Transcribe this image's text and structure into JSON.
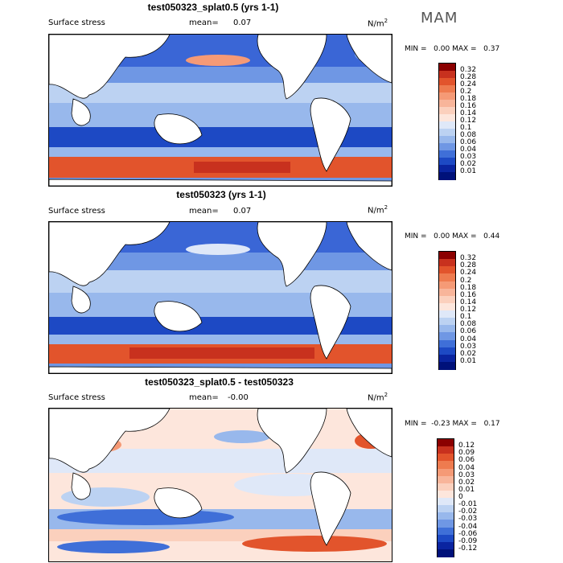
{
  "season": "MAM",
  "units_main": "N/m",
  "units_sup": "2",
  "panels": [
    {
      "title": "test050323_splat0.5 (yrs 1-1)",
      "variable": "Surface stress",
      "mean_label": "mean=",
      "mean_value": "0.07",
      "min_label": "MIN =",
      "min_value": "0.00",
      "max_label": "MAX =",
      "max_value": "0.37",
      "colorbar": {
        "labels": [
          "0.32",
          "0.28",
          "0.24",
          "0.2",
          "0.18",
          "0.16",
          "0.14",
          "0.12",
          "0.1",
          "0.08",
          "0.06",
          "0.04",
          "0.03",
          "0.02",
          "0.01"
        ],
        "colors": [
          "#8b0000",
          "#c8311e",
          "#e2542c",
          "#ee7b4f",
          "#f59a76",
          "#f8b59a",
          "#fbd0bd",
          "#fde6dc",
          "#dfe8f8",
          "#bcd2f2",
          "#98b8ec",
          "#6f97e4",
          "#3f6fd8",
          "#1d49c4",
          "#0a24a0",
          "#00117a"
        ]
      }
    },
    {
      "title": "test050323 (yrs 1-1)",
      "variable": "Surface stress",
      "mean_label": "mean=",
      "mean_value": "0.07",
      "min_label": "MIN =",
      "min_value": "0.00",
      "max_label": "MAX =",
      "max_value": "0.44",
      "colorbar": {
        "labels": [
          "0.32",
          "0.28",
          "0.24",
          "0.2",
          "0.18",
          "0.16",
          "0.14",
          "0.12",
          "0.1",
          "0.08",
          "0.06",
          "0.04",
          "0.03",
          "0.02",
          "0.01"
        ],
        "colors": [
          "#8b0000",
          "#c8311e",
          "#e2542c",
          "#ee7b4f",
          "#f59a76",
          "#f8b59a",
          "#fbd0bd",
          "#fde6dc",
          "#dfe8f8",
          "#bcd2f2",
          "#98b8ec",
          "#6f97e4",
          "#3f6fd8",
          "#1d49c4",
          "#0a24a0",
          "#00117a"
        ]
      }
    },
    {
      "title": "test050323_splat0.5 - test050323",
      "variable": "Surface stress",
      "mean_label": "mean=",
      "mean_value": "-0.00",
      "min_label": "MIN =",
      "min_value": "-0.23",
      "max_label": "MAX =",
      "max_value": "0.17",
      "colorbar": {
        "labels": [
          "0.12",
          "0.09",
          "0.06",
          "0.04",
          "0.03",
          "0.02",
          "0.01",
          "0",
          "-0.01",
          "-0.02",
          "-0.03",
          "-0.04",
          "-0.06",
          "-0.09",
          "-0.12"
        ],
        "colors": [
          "#8b0000",
          "#c8311e",
          "#e2542c",
          "#ee7b4f",
          "#f59a76",
          "#f8b59a",
          "#fbd0bd",
          "#fde6dc",
          "#dfe8f8",
          "#bcd2f2",
          "#98b8ec",
          "#6f97e4",
          "#3f6fd8",
          "#1d49c4",
          "#0a24a0",
          "#00117a"
        ]
      }
    }
  ]
}
